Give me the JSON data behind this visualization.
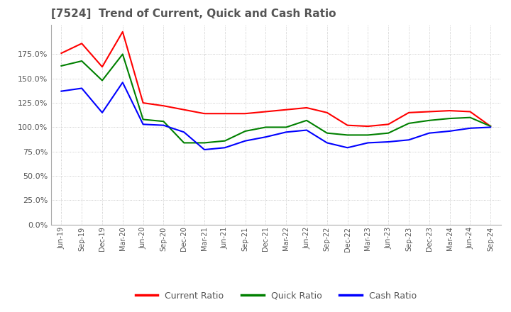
{
  "title": "[7524]  Trend of Current, Quick and Cash Ratio",
  "title_color": "#555555",
  "background_color": "#ffffff",
  "plot_bg_color": "#ffffff",
  "grid_color": "#aaaaaa",
  "ylim": [
    0.0,
    2.05
  ],
  "yticks": [
    0.0,
    0.25,
    0.5,
    0.75,
    1.0,
    1.25,
    1.5,
    1.75
  ],
  "legend_labels": [
    "Current Ratio",
    "Quick Ratio",
    "Cash Ratio"
  ],
  "legend_colors": [
    "#ff0000",
    "#008000",
    "#0000ff"
  ],
  "x_labels": [
    "Jun-19",
    "Sep-19",
    "Dec-19",
    "Mar-20",
    "Jun-20",
    "Sep-20",
    "Dec-20",
    "Mar-21",
    "Jun-21",
    "Sep-21",
    "Dec-21",
    "Mar-22",
    "Jun-22",
    "Sep-22",
    "Dec-22",
    "Mar-23",
    "Jun-23",
    "Sep-23",
    "Dec-23",
    "Mar-24",
    "Jun-24",
    "Sep-24"
  ],
  "current_ratio": [
    1.76,
    1.86,
    1.62,
    1.98,
    1.25,
    1.22,
    1.18,
    1.14,
    1.14,
    1.14,
    1.16,
    1.18,
    1.2,
    1.15,
    1.02,
    1.01,
    1.03,
    1.15,
    1.16,
    1.17,
    1.16,
    1.01
  ],
  "quick_ratio": [
    1.63,
    1.68,
    1.48,
    1.75,
    1.08,
    1.06,
    0.84,
    0.84,
    0.86,
    0.96,
    1.0,
    1.0,
    1.07,
    0.94,
    0.92,
    0.92,
    0.94,
    1.04,
    1.07,
    1.09,
    1.1,
    1.01
  ],
  "cash_ratio": [
    1.37,
    1.4,
    1.15,
    1.46,
    1.03,
    1.02,
    0.95,
    0.77,
    0.79,
    0.86,
    0.9,
    0.95,
    0.97,
    0.84,
    0.79,
    0.84,
    0.85,
    0.87,
    0.94,
    0.96,
    0.99,
    1.0
  ]
}
